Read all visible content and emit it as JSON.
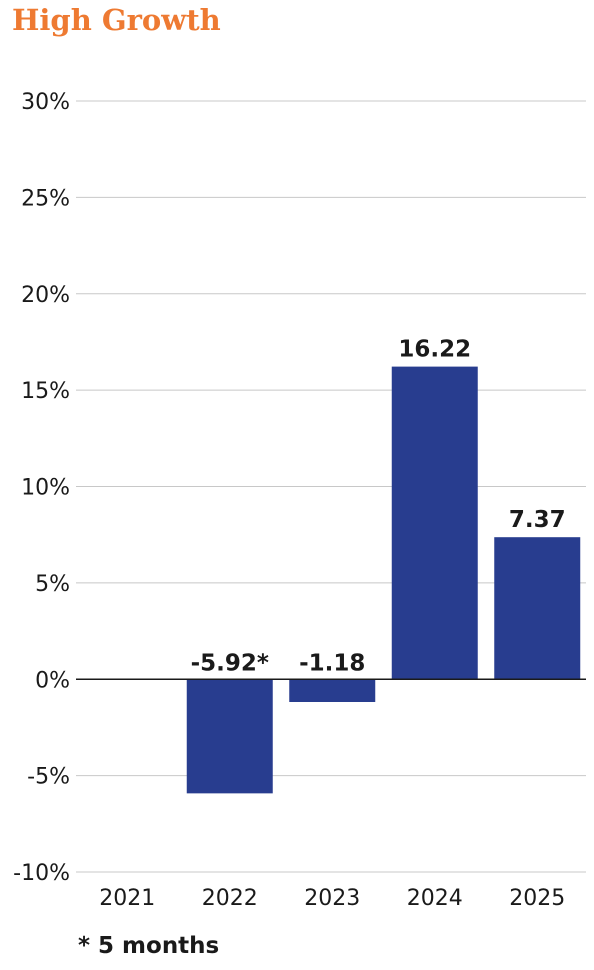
{
  "chart_data": {
    "type": "bar",
    "title": "High Growth",
    "xlabel": "",
    "ylabel": "",
    "categories": [
      "2021",
      "2022",
      "2023",
      "2024",
      "2025"
    ],
    "values": [
      null,
      -5.92,
      -1.18,
      16.22,
      7.37
    ],
    "data_labels": [
      "",
      "-5.92*",
      "-1.18",
      "16.22",
      "7.37"
    ],
    "ylim": [
      -10,
      30
    ],
    "yticks": [
      30,
      25,
      20,
      15,
      10,
      5,
      0,
      -5,
      -10
    ],
    "ytick_labels": [
      "30%",
      "25%",
      "20%",
      "15%",
      "10%",
      "5%",
      "0%",
      "-5%",
      "-10%"
    ],
    "grid": true,
    "legend": "none"
  },
  "footnote": "* 5 months",
  "colors": {
    "title": "#ee7a32",
    "bar": "#283d8f",
    "grid": "#c8c8c8",
    "zero_line": "#1a1a1a"
  }
}
